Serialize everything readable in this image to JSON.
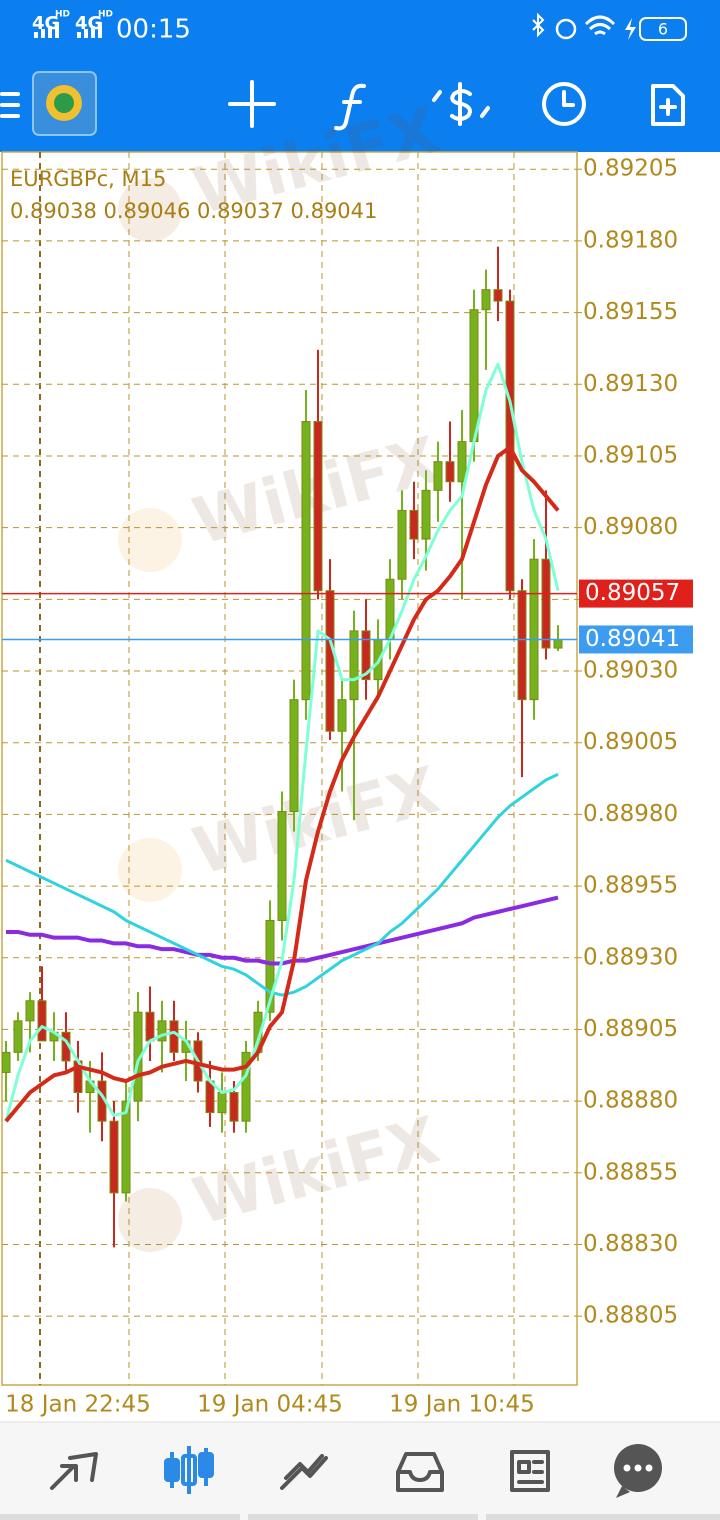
{
  "status_bar": {
    "network": [
      {
        "label": "4G",
        "badge": "HD"
      },
      {
        "label": "4G",
        "badge": "HD"
      }
    ],
    "time": "00:15",
    "battery": "6"
  },
  "watermark": "WikiFX",
  "chart_data": {
    "type": "candlestick",
    "symbol": "EURGBPc, M15",
    "ohlc_text": "0.89038 0.89046 0.89037 0.89041",
    "categories": [
      null,
      null,
      null,
      null,
      null,
      null,
      "18 Jan 22:45",
      null,
      null,
      null,
      null,
      null,
      null,
      null,
      null,
      null,
      null,
      null,
      null,
      null,
      null,
      null,
      "19 Jan 04:45",
      null,
      null,
      null,
      null,
      null,
      null,
      null,
      null,
      null,
      null,
      null,
      null,
      null,
      null,
      null,
      "19 Jan 10:45",
      null,
      null,
      null,
      null,
      null,
      null,
      null,
      null
    ],
    "open": [
      0.8889,
      0.88897,
      0.88908,
      0.88915,
      0.88901,
      0.88904,
      0.88894,
      0.88883,
      0.88887,
      0.88873,
      0.88848,
      0.8888,
      0.88911,
      0.88901,
      0.88908,
      0.88897,
      0.88901,
      0.88887,
      0.88876,
      0.88883,
      0.88873,
      0.88897,
      0.88911,
      0.88943,
      0.88981,
      0.8902,
      0.89117,
      0.89058,
      0.89009,
      0.8902,
      0.89044,
      0.89027,
      0.89041,
      0.89062,
      0.89086,
      0.89076,
      0.89093,
      0.89103,
      0.89096,
      0.8911,
      0.89156,
      0.89163,
      0.89159,
      0.89058,
      0.8902,
      0.89069,
      0.89038
    ],
    "high": [
      0.88901,
      0.88911,
      0.88918,
      0.88927,
      0.88911,
      0.88911,
      0.88901,
      0.88894,
      0.88897,
      0.8888,
      0.88887,
      0.88918,
      0.8892,
      0.88915,
      0.88915,
      0.88908,
      0.88904,
      0.88894,
      0.8889,
      0.88887,
      0.88901,
      0.88915,
      0.8895,
      0.88988,
      0.89027,
      0.89128,
      0.89142,
      0.89069,
      0.89027,
      0.89051,
      0.89055,
      0.89048,
      0.89069,
      0.89093,
      0.89096,
      0.891,
      0.8911,
      0.89117,
      0.89121,
      0.89163,
      0.8917,
      0.89178,
      0.89163,
      0.89062,
      0.89076,
      0.89093,
      0.89046
    ],
    "low": [
      0.8888,
      0.88894,
      0.88897,
      0.88904,
      0.88894,
      0.8889,
      0.88876,
      0.88869,
      0.88866,
      0.88829,
      0.88845,
      0.88873,
      0.88894,
      0.8889,
      0.88894,
      0.88887,
      0.88883,
      0.88871,
      0.88869,
      0.88869,
      0.88869,
      0.88894,
      0.88908,
      0.88936,
      0.88974,
      0.89013,
      0.89055,
      0.89006,
      0.88988,
      0.88978,
      0.8902,
      0.8902,
      0.89034,
      0.89055,
      0.89069,
      0.89065,
      0.89082,
      0.89089,
      0.89055,
      0.89103,
      0.89135,
      0.89152,
      0.89055,
      0.88993,
      0.89013,
      0.89034,
      0.89037
    ],
    "close": [
      0.88897,
      0.88908,
      0.88915,
      0.88901,
      0.88904,
      0.88894,
      0.88883,
      0.88887,
      0.88873,
      0.88848,
      0.8888,
      0.88911,
      0.88901,
      0.88908,
      0.88897,
      0.88901,
      0.88887,
      0.88876,
      0.88883,
      0.88873,
      0.88897,
      0.88911,
      0.88943,
      0.88981,
      0.8902,
      0.89117,
      0.89058,
      0.89009,
      0.8902,
      0.89044,
      0.89027,
      0.89041,
      0.89062,
      0.89086,
      0.89076,
      0.89093,
      0.89103,
      0.89096,
      0.8911,
      0.89156,
      0.89163,
      0.89159,
      0.89058,
      0.8902,
      0.89069,
      0.89038,
      0.89041
    ],
    "bull_color": "#76b21e",
    "bear_color": "#c8281e",
    "series": [
      {
        "color": "#8a2be2",
        "values": [
          0.88939,
          0.88939,
          0.88938,
          0.88938,
          0.88937,
          0.88937,
          0.88937,
          0.88936,
          0.88936,
          0.88935,
          0.88935,
          0.88934,
          0.88934,
          0.88933,
          0.88933,
          0.88932,
          0.88931,
          0.88931,
          0.8893,
          0.8893,
          0.88929,
          0.88929,
          0.88928,
          0.88928,
          0.88929,
          0.88929,
          0.8893,
          0.88931,
          0.88932,
          0.88933,
          0.88934,
          0.88935,
          0.88936,
          0.88937,
          0.88938,
          0.88939,
          0.8894,
          0.88941,
          0.88942,
          0.88944,
          0.88945,
          0.88946,
          0.88947,
          0.88948,
          0.88949,
          0.8895,
          0.88951
        ]
      },
      {
        "color": "#2fd3e0",
        "values": [
          0.88964,
          0.88962,
          0.8896,
          0.88958,
          0.88956,
          0.88954,
          0.88952,
          0.8895,
          0.88948,
          0.88946,
          0.88943,
          0.88941,
          0.88939,
          0.88937,
          0.88935,
          0.88933,
          0.88931,
          0.88929,
          0.88927,
          0.88926,
          0.88924,
          0.88921,
          0.88918,
          0.88917,
          0.88918,
          0.8892,
          0.88923,
          0.88926,
          0.88929,
          0.88931,
          0.88933,
          0.88935,
          0.88939,
          0.88942,
          0.88946,
          0.8895,
          0.88954,
          0.88959,
          0.88964,
          0.88969,
          0.88974,
          0.88979,
          0.88983,
          0.88986,
          0.88989,
          0.88992,
          0.88994
        ]
      },
      {
        "color": "#7fffd4",
        "values": [
          0.88873,
          0.88889,
          0.88901,
          0.88906,
          0.88904,
          0.88901,
          0.88894,
          0.88887,
          0.88882,
          0.88875,
          0.88876,
          0.88894,
          0.88901,
          0.88903,
          0.88904,
          0.88901,
          0.88894,
          0.88887,
          0.88883,
          0.88884,
          0.88889,
          0.88901,
          0.88915,
          0.88929,
          0.88957,
          0.89002,
          0.89044,
          0.89041,
          0.89027,
          0.89027,
          0.89029,
          0.89033,
          0.89041,
          0.89051,
          0.89062,
          0.8907,
          0.89079,
          0.89086,
          0.89091,
          0.8911,
          0.89128,
          0.89137,
          0.89124,
          0.89103,
          0.89086,
          0.89076,
          0.89058
        ]
      },
      {
        "color": "#d42a1a",
        "values": [
          0.88873,
          0.88878,
          0.88883,
          0.88886,
          0.88889,
          0.8889,
          0.88892,
          0.88891,
          0.8889,
          0.88888,
          0.88887,
          0.88889,
          0.8889,
          0.88892,
          0.88893,
          0.88894,
          0.88893,
          0.88892,
          0.88891,
          0.88891,
          0.88892,
          0.88897,
          0.88906,
          0.88911,
          0.88929,
          0.88957,
          0.88974,
          0.88988,
          0.88999,
          0.89007,
          0.89014,
          0.89021,
          0.8903,
          0.89039,
          0.89048,
          0.89055,
          0.89058,
          0.89063,
          0.89069,
          0.89082,
          0.89095,
          0.89105,
          0.89108,
          0.891,
          0.89096,
          0.89091,
          0.89086
        ]
      }
    ],
    "price_lines": [
      {
        "value": 0.89057,
        "color": "#e0201a"
      },
      {
        "value": 0.89041,
        "color": "#3c9cf0"
      }
    ],
    "ylim": [
      0.88781,
      0.89211
    ],
    "yticks": [
      0.89205,
      {
        "value": 0.8918,
        "label": "0.89180"
      },
      0.89155,
      {
        "value": 0.8913,
        "label": "0.89130"
      },
      0.89105,
      {
        "value": 0.8908,
        "label": "0.89080"
      },
      0.89055,
      {
        "value": 0.8903,
        "label": "0.89030"
      },
      0.89005,
      {
        "value": 0.8898,
        "label": "0.88980"
      },
      0.88955,
      {
        "value": 0.8893,
        "label": "0.88930"
      },
      0.88905,
      {
        "value": 0.8888,
        "label": "0.88880"
      },
      0.88855,
      {
        "value": 0.8883,
        "label": "0.88830"
      },
      0.88805
    ],
    "grid": true
  }
}
